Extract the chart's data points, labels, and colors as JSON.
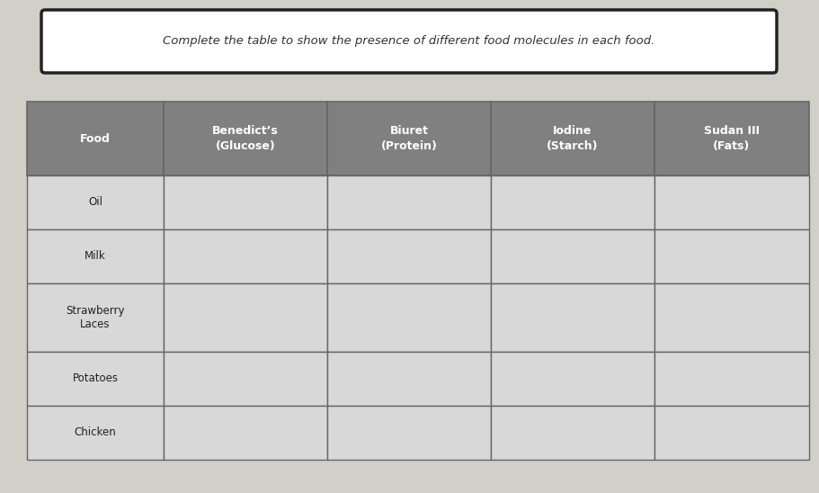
{
  "title": "Complete the table to show the presence of different food molecules in each food.",
  "columns": [
    "Food",
    "Benedict’s\n(Glucose)",
    "Biuret\n(Protein)",
    "Iodine\n(Starch)",
    "Sudan III\n(Fats)"
  ],
  "rows": [
    "Oil",
    "Milk",
    "Strawberry\nLaces",
    "Potatoes",
    "Chicken"
  ],
  "header_bg": "#808080",
  "header_text": "#ffffff",
  "row_bg": "#d8d8d8",
  "border_color": "#666666",
  "title_box_bg": "#ffffff",
  "title_box_border": "#222222",
  "page_bg": "#d0cfc8",
  "figsize": [
    9.11,
    5.48
  ],
  "dpi": 100,
  "title_font_size": 9.5,
  "header_font_size": 9.0,
  "row_font_size": 8.5
}
